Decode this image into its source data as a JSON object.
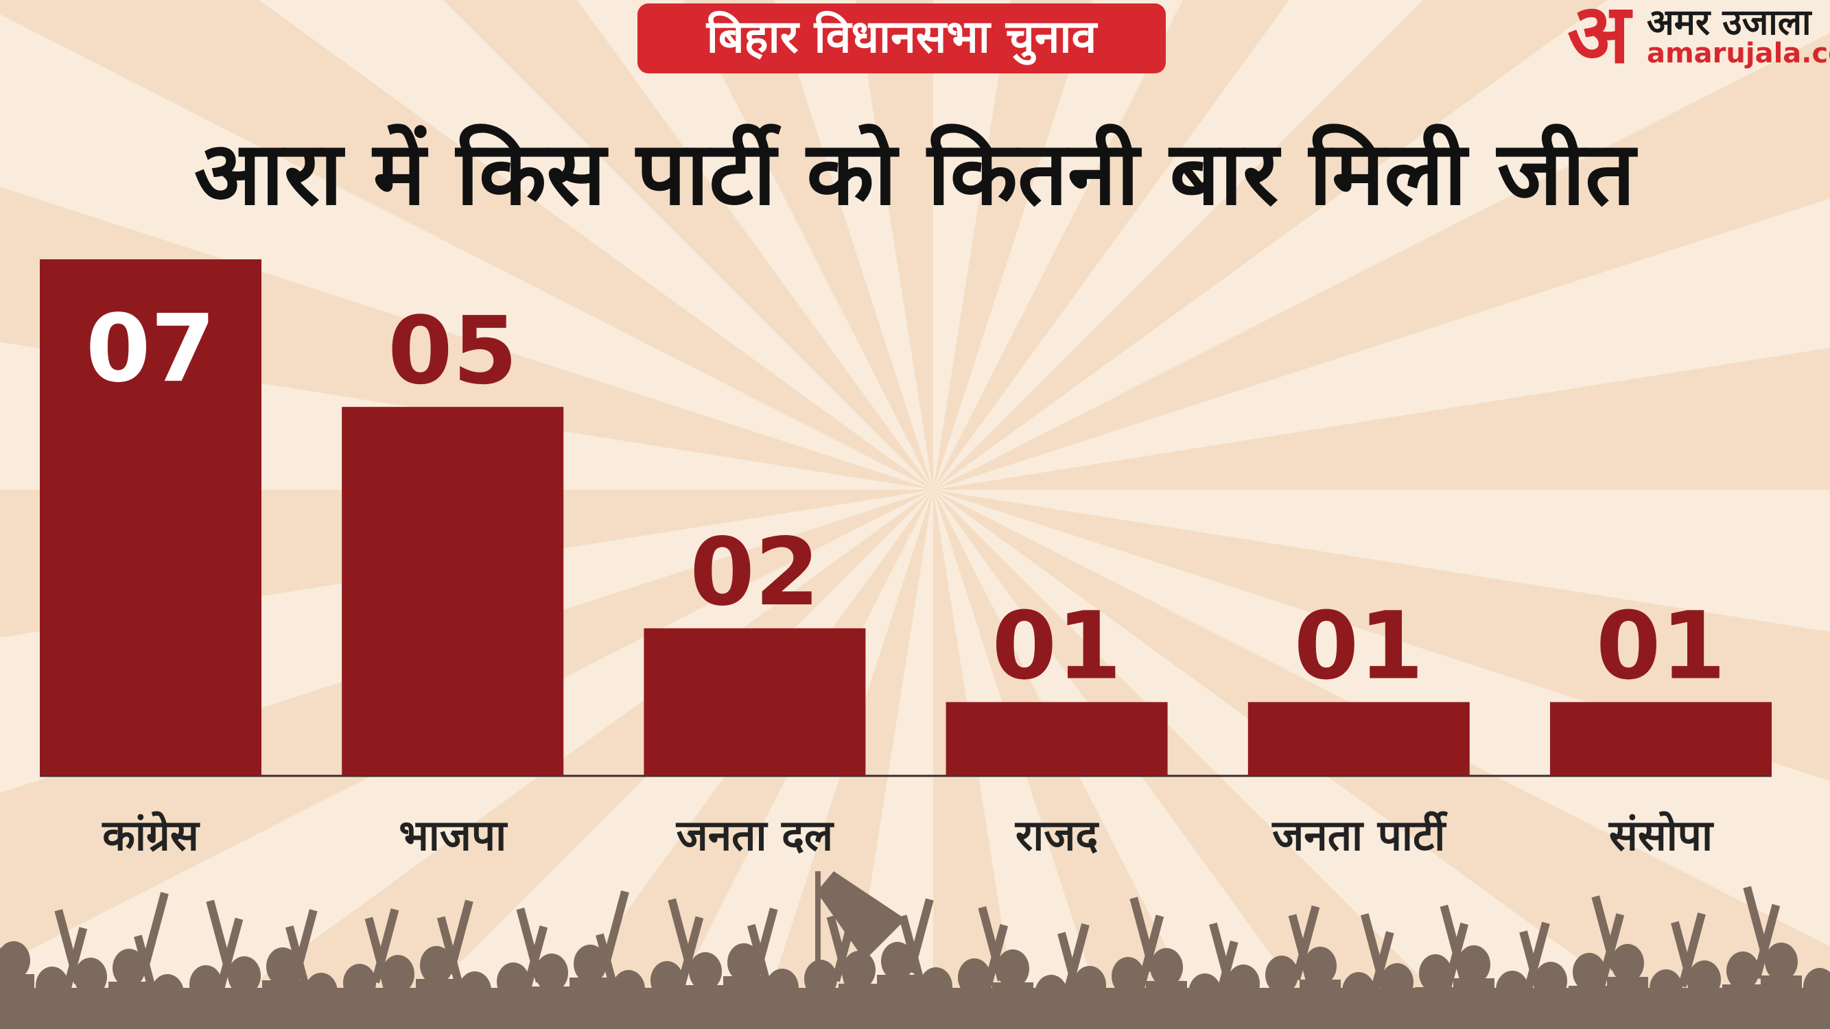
{
  "chart_data": {
    "type": "bar",
    "badge": "बिहार विधानसभा चुनाव",
    "title": "आरा में किस पार्टी को कितनी बार मिली जीत",
    "logo": {
      "mark": "अ",
      "name": "अमर उजाला",
      "site": "amarujala.com"
    },
    "categories": [
      "कांग्रेस",
      "भाजपा",
      "जनता दल",
      "राजद",
      "जनता पार्टी",
      "संसोपा"
    ],
    "values": [
      7,
      5,
      2,
      1,
      1,
      1
    ],
    "value_labels": [
      "07",
      "05",
      "02",
      "01",
      "01",
      "01"
    ],
    "color": "#8f1a1e"
  }
}
